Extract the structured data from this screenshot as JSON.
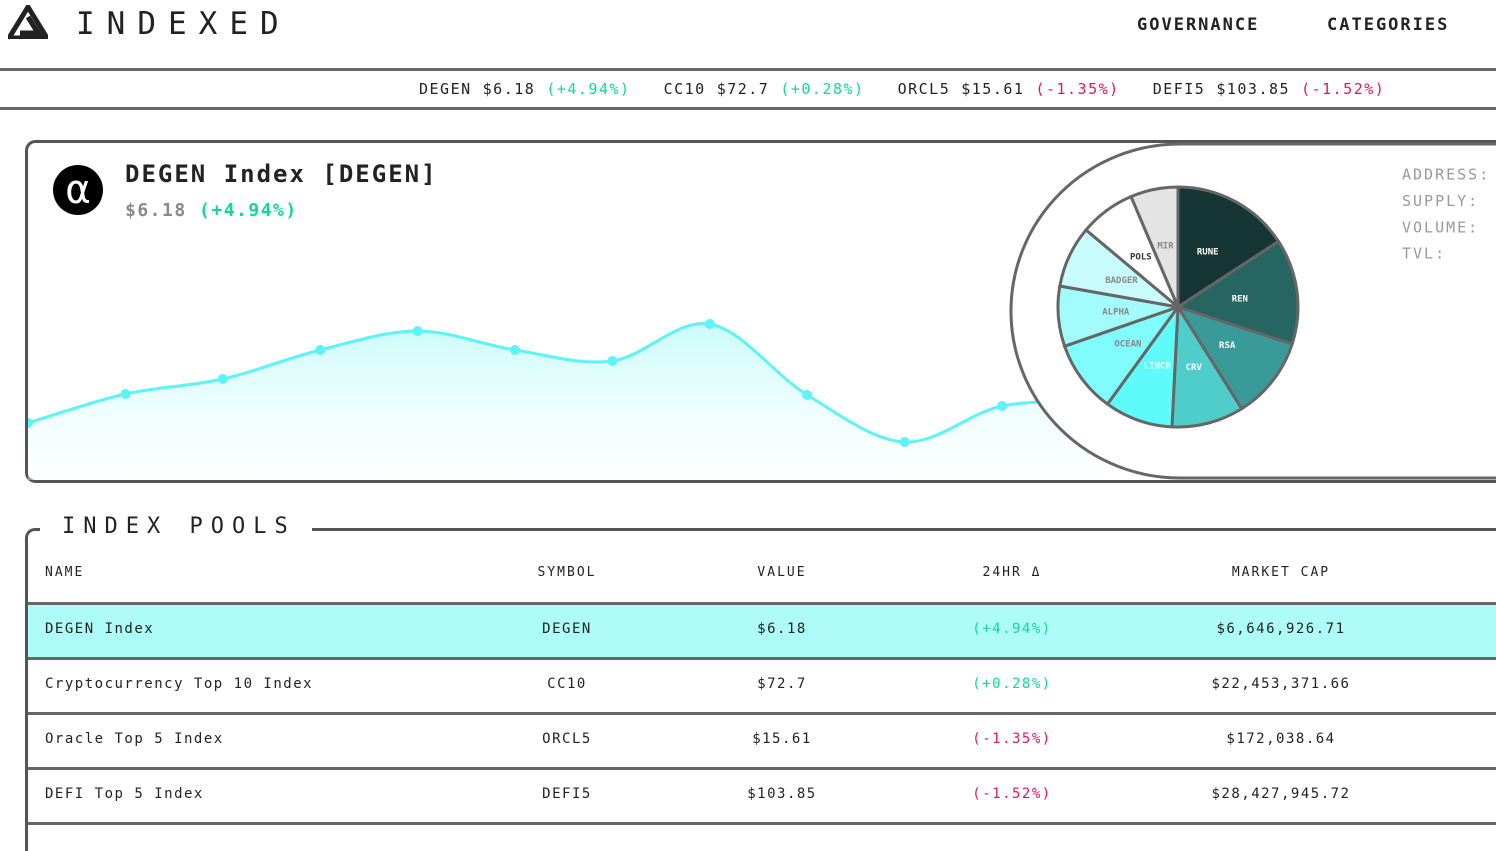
{
  "header": {
    "brand": "INDEXED",
    "nav": [
      "GOVERNANCE",
      "CATEGORIES"
    ]
  },
  "ticker": [
    {
      "symbol": "DEGEN",
      "price": "$6.18",
      "change": "(+4.94%)"
    },
    {
      "symbol": "CC10",
      "price": "$72.7",
      "change": "(+0.28%)"
    },
    {
      "symbol": "ORCL5",
      "price": "$15.61",
      "change": "(-1.35%)"
    },
    {
      "symbol": "DEFI5",
      "price": "$103.85",
      "change": "(-1.52%)"
    }
  ],
  "hero": {
    "icon": "α",
    "title": "DEGEN Index [DEGEN]",
    "price": "$6.18",
    "change": "(+4.94%)",
    "stats": [
      "ADDRESS:",
      "SUPPLY:",
      "VOLUME:",
      "TVL:"
    ]
  },
  "chart_data": [
    {
      "type": "line",
      "ylim": [
        0,
        100
      ],
      "color": "#5cf4f6",
      "series": [
        {
          "values": [
            27.5,
            42,
            49.5,
            64,
            73.5,
            64,
            58.5,
            77,
            41.5,
            18,
            36,
            38
          ]
        }
      ]
    },
    {
      "type": "pie",
      "categories": [
        "RUNE",
        "REN",
        "RSA",
        "CRV",
        "LINCH",
        "OCEAN",
        "ALPHA",
        "BADGER",
        "POLS",
        "MIR"
      ],
      "values": [
        15.8,
        14.2,
        11.1,
        9.7,
        9.2,
        9.7,
        8.1,
        8.3,
        7.5,
        6.4
      ],
      "colors": [
        "#153635",
        "#276563",
        "#3a9a98",
        "#4ecdcb",
        "#5ffafa",
        "#80fcfc",
        "#a2fcfc",
        "#c9fcfc",
        "#ffffff",
        "#e4e4e4"
      ]
    }
  ],
  "table": {
    "title": "INDEX POOLS",
    "columns": [
      "NAME",
      "SYMBOL",
      "VALUE",
      "24HR Δ",
      "MARKET CAP"
    ],
    "rows": [
      [
        "DEGEN Index",
        "DEGEN",
        "$6.18",
        "(+4.94%)",
        "$6,646,926.71"
      ],
      [
        "Cryptocurrency Top 10 Index",
        "CC10",
        "$72.7",
        "(+0.28%)",
        "$22,453,371.66"
      ],
      [
        "Oracle Top 5 Index",
        "ORCL5",
        "$15.61",
        "(-1.35%)",
        "$172,038.64"
      ],
      [
        "DEFI Top 5 Index",
        "DEFI5",
        "$103.85",
        "(-1.52%)",
        "$28,427,945.72"
      ]
    ]
  }
}
